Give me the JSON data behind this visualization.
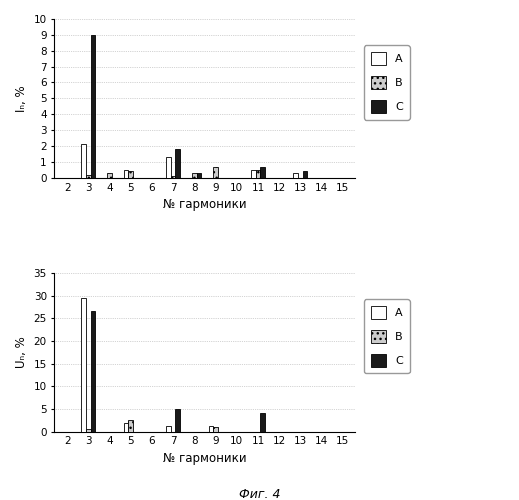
{
  "chart1": {
    "ylabel": "Iₙ, %",
    "xlabel": "№ гармоники",
    "ylim": [
      0,
      10
    ],
    "yticks": [
      0,
      1,
      2,
      3,
      4,
      5,
      6,
      7,
      8,
      9,
      10
    ],
    "harmonics": [
      2,
      3,
      4,
      5,
      6,
      7,
      8,
      9,
      10,
      11,
      12,
      13,
      14,
      15
    ],
    "A": [
      0,
      2.1,
      0,
      0.5,
      0,
      1.3,
      0,
      0,
      0,
      0.5,
      0,
      0.3,
      0,
      0
    ],
    "B": [
      0,
      0.2,
      0.3,
      0.4,
      0,
      0.1,
      0.3,
      0.7,
      0,
      0.5,
      0,
      0,
      0,
      0
    ],
    "C": [
      0,
      9.0,
      0,
      0,
      0,
      1.8,
      0.3,
      0,
      0,
      0.7,
      0,
      0.4,
      0,
      0
    ]
  },
  "chart2": {
    "ylabel": "Uₙ, %",
    "xlabel": "№ гармоники",
    "ylim": [
      0,
      35
    ],
    "yticks": [
      0,
      5,
      10,
      15,
      20,
      25,
      30,
      35
    ],
    "harmonics": [
      2,
      3,
      4,
      5,
      6,
      7,
      8,
      9,
      10,
      11,
      12,
      13,
      14,
      15
    ],
    "A": [
      0,
      29.5,
      0,
      2.0,
      0,
      1.2,
      0,
      1.2,
      0,
      0,
      0,
      0,
      0,
      0
    ],
    "B": [
      0,
      0.5,
      0,
      2.5,
      0,
      0,
      0,
      1.0,
      0,
      0,
      0,
      0,
      0,
      0
    ],
    "C": [
      0,
      26.5,
      0,
      0,
      0,
      5.0,
      0,
      0,
      0,
      4.2,
      0,
      0,
      0,
      0
    ]
  },
  "color_A": "#ffffff",
  "color_B": "#aaaaaa",
  "color_C": "#1a1a1a",
  "edge_color": "#000000",
  "fig_caption": "Фиг. 4",
  "bar_width": 0.22
}
